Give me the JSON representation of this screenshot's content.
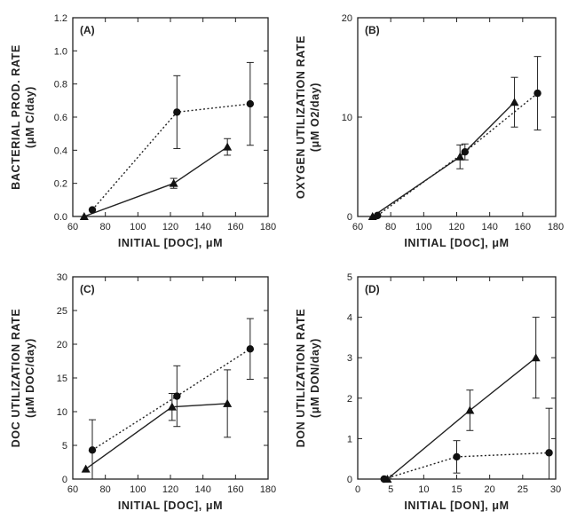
{
  "chart_data": [
    {
      "id": "A",
      "panel_label": "(A)",
      "type": "line",
      "xlabel": "INITIAL [DOC], μM",
      "ylabel_line1": "BACTERIAL PROD. RATE",
      "ylabel_line2": "(μM C/day)",
      "xlim": [
        60,
        180
      ],
      "ylim": [
        0,
        1.2
      ],
      "xticks": [
        60,
        80,
        100,
        120,
        140,
        160,
        180
      ],
      "yticks": [
        0.0,
        0.2,
        0.4,
        0.6,
        0.8,
        1.0,
        1.2
      ],
      "ytick_decimals": 1,
      "series": [
        {
          "marker": "triangle",
          "line": "solid",
          "x": [
            67,
            122,
            155
          ],
          "y": [
            0.0,
            0.2,
            0.42
          ],
          "err": [
            0,
            0.03,
            0.05
          ]
        },
        {
          "marker": "circle",
          "line": "dotted",
          "x": [
            72,
            124,
            169
          ],
          "y": [
            0.04,
            0.63,
            0.68
          ],
          "err": [
            0,
            0.22,
            0.25
          ]
        }
      ]
    },
    {
      "id": "B",
      "panel_label": "(B)",
      "type": "line",
      "xlabel": "INITIAL [DOC], μM",
      "ylabel_line1": "OXYGEN UTILIZATION RATE",
      "ylabel_line2": "(μM O2/day)",
      "xlim": [
        60,
        180
      ],
      "ylim": [
        0,
        20
      ],
      "xticks": [
        60,
        80,
        100,
        120,
        140,
        160,
        180
      ],
      "yticks": [
        0,
        10,
        20
      ],
      "ytick_decimals": 0,
      "series": [
        {
          "marker": "triangle",
          "line": "solid",
          "x": [
            69,
            122,
            155
          ],
          "y": [
            0.0,
            6.0,
            11.5
          ],
          "err": [
            0,
            1.2,
            2.5
          ]
        },
        {
          "marker": "circle",
          "line": "dotted",
          "x": [
            72,
            125,
            169
          ],
          "y": [
            0.1,
            6.5,
            12.4
          ],
          "err": [
            0,
            0.8,
            3.7
          ]
        }
      ]
    },
    {
      "id": "C",
      "panel_label": "(C)",
      "type": "line",
      "xlabel": "INITIAL [DOC], μM",
      "ylabel_line1": "DOC UTILIZATION RATE",
      "ylabel_line2": "(μM DOC/day)",
      "xlim": [
        60,
        180
      ],
      "ylim": [
        0,
        30
      ],
      "xticks": [
        60,
        80,
        100,
        120,
        140,
        160,
        180
      ],
      "yticks": [
        0,
        5,
        10,
        15,
        20,
        25,
        30
      ],
      "ytick_decimals": 0,
      "series": [
        {
          "marker": "triangle",
          "line": "solid",
          "x": [
            68,
            121,
            155
          ],
          "y": [
            1.5,
            10.7,
            11.2
          ],
          "err": [
            0,
            2.0,
            5.0
          ]
        },
        {
          "marker": "circle",
          "line": "dotted",
          "x": [
            72,
            124,
            169
          ],
          "y": [
            4.3,
            12.3,
            19.3
          ],
          "err": [
            4.5,
            4.5,
            4.5
          ]
        }
      ]
    },
    {
      "id": "D",
      "panel_label": "(D)",
      "type": "line",
      "xlabel": "INITIAL [DON], μM",
      "ylabel_line1": "DON UTILIZATION RATE",
      "ylabel_line2": "(μM DON/day)",
      "xlim": [
        0,
        30
      ],
      "ylim": [
        0,
        5
      ],
      "xticks": [
        0,
        5,
        10,
        15,
        20,
        25,
        30
      ],
      "yticks": [
        0,
        1,
        2,
        3,
        4,
        5
      ],
      "ytick_decimals": 0,
      "series": [
        {
          "marker": "triangle",
          "line": "solid",
          "x": [
            4.5,
            17,
            27
          ],
          "y": [
            0.0,
            1.7,
            3.0
          ],
          "err": [
            0,
            0.5,
            1.0
          ]
        },
        {
          "marker": "circle",
          "line": "dotted",
          "x": [
            4.0,
            15,
            29
          ],
          "y": [
            0.0,
            0.55,
            0.65
          ],
          "err": [
            0,
            0.4,
            1.1
          ]
        }
      ]
    }
  ]
}
